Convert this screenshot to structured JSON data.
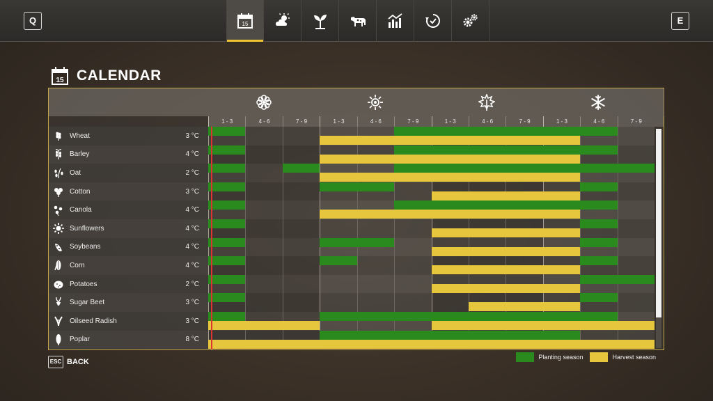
{
  "topbar": {
    "left_key": "Q",
    "right_key": "E",
    "tabs": [
      {
        "icon": "calendar-icon",
        "day": "15",
        "active": true
      },
      {
        "icon": "weather-icon"
      },
      {
        "icon": "crop-sprout-icon"
      },
      {
        "icon": "cow-icon"
      },
      {
        "icon": "statistics-icon"
      },
      {
        "icon": "contracts-icon"
      },
      {
        "icon": "settings-gears-icon"
      }
    ]
  },
  "page": {
    "title": "CALENDAR",
    "title_icon_day": "15"
  },
  "seasons": [
    "spring-flower-icon",
    "summer-sun-icon",
    "autumn-leaf-icon",
    "winter-snowflake-icon"
  ],
  "months": [
    "1 - 3",
    "4 - 6",
    "7 - 9",
    "1 - 3",
    "4 - 6",
    "7 - 9",
    "1 - 3",
    "4 - 6",
    "7 - 9",
    "1 - 3",
    "4 - 6",
    "7 - 9"
  ],
  "crops": [
    {
      "name": "Wheat",
      "temp": "3 °C",
      "icon": "wheat-icon",
      "plant": [
        [
          0,
          1
        ],
        [
          5,
          11
        ]
      ],
      "harvest": [
        [
          3,
          10
        ]
      ]
    },
    {
      "name": "Barley",
      "temp": "4 °C",
      "icon": "barley-icon",
      "plant": [
        [
          0,
          1
        ],
        [
          5,
          11
        ]
      ],
      "harvest": [
        [
          3,
          10
        ]
      ]
    },
    {
      "name": "Oat",
      "temp": "2 °C",
      "icon": "oat-icon",
      "plant": [
        [
          0,
          1
        ],
        [
          2,
          3
        ],
        [
          5,
          12
        ]
      ],
      "harvest": [
        [
          3,
          10
        ]
      ]
    },
    {
      "name": "Cotton",
      "temp": "3 °C",
      "icon": "cotton-icon",
      "plant": [
        [
          0,
          1
        ],
        [
          3,
          5
        ],
        [
          10,
          11
        ]
      ],
      "harvest": [
        [
          6,
          10
        ]
      ]
    },
    {
      "name": "Canola",
      "temp": "4 °C",
      "icon": "canola-icon",
      "plant": [
        [
          0,
          1
        ],
        [
          5,
          11
        ]
      ],
      "harvest": [
        [
          3,
          10
        ]
      ]
    },
    {
      "name": "Sunflowers",
      "temp": "4 °C",
      "icon": "sunflower-icon",
      "plant": [
        [
          0,
          1
        ],
        [
          10,
          11
        ]
      ],
      "harvest": [
        [
          6,
          10
        ]
      ]
    },
    {
      "name": "Soybeans",
      "temp": "4 °C",
      "icon": "soybean-icon",
      "plant": [
        [
          0,
          1
        ],
        [
          3,
          5
        ],
        [
          10,
          11
        ]
      ],
      "harvest": [
        [
          6,
          10
        ]
      ]
    },
    {
      "name": "Corn",
      "temp": "4 °C",
      "icon": "corn-icon",
      "plant": [
        [
          0,
          1
        ],
        [
          3,
          4
        ],
        [
          10,
          11
        ]
      ],
      "harvest": [
        [
          6,
          10
        ]
      ]
    },
    {
      "name": "Potatoes",
      "temp": "2 °C",
      "icon": "potato-icon",
      "plant": [
        [
          0,
          1
        ],
        [
          10,
          12
        ]
      ],
      "harvest": [
        [
          6,
          10
        ]
      ]
    },
    {
      "name": "Sugar Beet",
      "temp": "3 °C",
      "icon": "sugar-beet-icon",
      "plant": [
        [
          0,
          1
        ],
        [
          10,
          11
        ]
      ],
      "harvest": [
        [
          7,
          10
        ]
      ]
    },
    {
      "name": "Oilseed Radish",
      "temp": "3 °C",
      "icon": "oilseed-radish-icon",
      "plant": [
        [
          0,
          1
        ],
        [
          3,
          11
        ]
      ],
      "harvest": [
        [
          0,
          3
        ],
        [
          6,
          12
        ]
      ]
    },
    {
      "name": "Poplar",
      "temp": "8 °C",
      "icon": "poplar-icon",
      "plant": [
        [
          3,
          10
        ]
      ],
      "harvest": [
        [
          0,
          12
        ]
      ]
    }
  ],
  "current_period_fraction": 0.08,
  "scroll_fraction": 0.86,
  "footer": {
    "esc_key": "ESC",
    "back_label": "BACK",
    "legend_planting": "Planting season",
    "legend_harvest": "Harvest season"
  },
  "colors": {
    "planting": "#2a8a1e",
    "harvest": "#e5c63c",
    "accent": "#f0c430",
    "today_marker": "#dd3333"
  }
}
